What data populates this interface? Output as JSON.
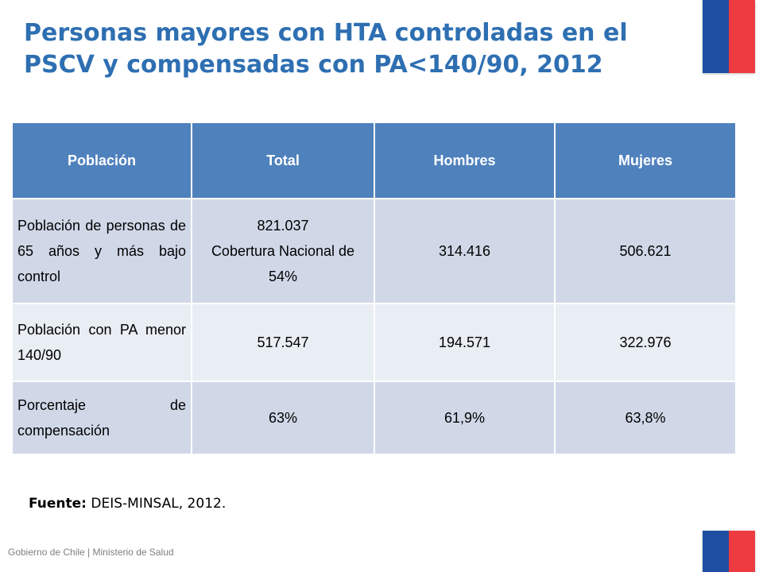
{
  "title": "Personas mayores con HTA controladas en el PSCV y compensadas con PA<140/90, 2012",
  "table": {
    "headers": [
      "Población",
      "Total",
      "Hombres",
      "Mujeres"
    ],
    "rows": [
      {
        "label": "Población de personas de 65 años y más bajo control",
        "total_value": "821.037",
        "total_note": "Cobertura Nacional de 54%",
        "hombres": "314.416",
        "mujeres": "506.621"
      },
      {
        "label": "Población con PA menor 140/90",
        "total_value": "517.547",
        "hombres": "194.571",
        "mujeres": "322.976"
      },
      {
        "label": "Porcentaje de compensación",
        "total_value": "63%",
        "hombres": "61,9%",
        "mujeres": "63,8%"
      }
    ]
  },
  "source": {
    "label": "Fuente:",
    "text": "DEIS-MINSAL, 2012."
  },
  "footer": "Gobierno de Chile | Ministerio de Salud",
  "colors": {
    "title": "#2e6fb2",
    "header_bg": "#4f81bd",
    "row_dark": "#d0d8e8",
    "row_light": "#e9edf4",
    "flag_blue": "#1f4fa2",
    "flag_red": "#ee3b41"
  }
}
